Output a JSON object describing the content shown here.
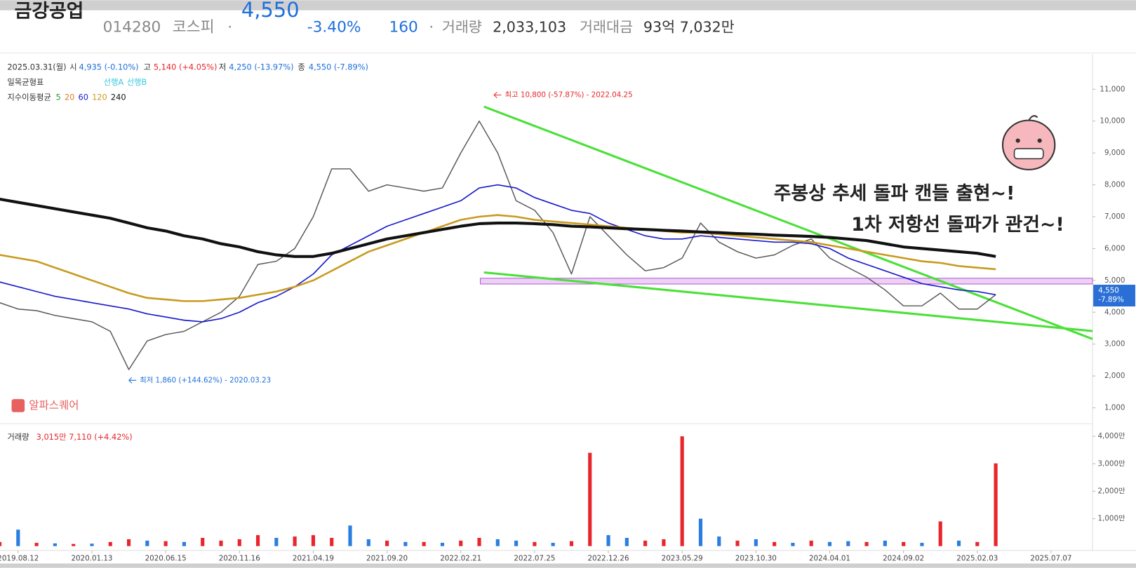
{
  "header": {
    "name": "금강공업",
    "code": "014280",
    "market": "코스피",
    "separator": "·",
    "price": "4,550",
    "change_rate": "-3.40%",
    "change": "160",
    "volume_label": "거래량",
    "volume": "2,033,103",
    "amount_label": "거래대금",
    "amount": "93억 7,032만"
  },
  "ohlc": {
    "date": "2025.03.31(월)",
    "open_label": "시",
    "open": "4,935 (-0.10%)",
    "high_label": "고",
    "high": "5,140 (+4.05%)",
    "low_label": "저",
    "low": "4,250 (-13.97%)",
    "close_label": "종",
    "close": "4,550 (-7.89%)"
  },
  "indicators": {
    "ichimoku": "일목균형표",
    "ichimoku_lines": [
      {
        "label": "선행A",
        "color": "#3cc8e0"
      },
      {
        "label": "선행B",
        "color": "#3cc8e0"
      }
    ],
    "ema": "지수이동평균",
    "ema_periods": [
      {
        "label": "5",
        "color": "#2ca02c"
      },
      {
        "label": "20",
        "color": "#e07b20"
      },
      {
        "label": "60",
        "color": "#1a1acc"
      },
      {
        "label": "120",
        "color": "#c89a1e"
      },
      {
        "label": "240",
        "color": "#111111"
      }
    ]
  },
  "annotations": {
    "high": "최고 10,800 (-57.87%) - 2022.04.25",
    "low": "최저 1,860 (+144.62%) - 2020.03.23",
    "comment1": "주봉상 추세 돌파 캔들 출현~!",
    "comment2": "1차 저항선 돌파가 관건~!",
    "brand": "알파스퀘어"
  },
  "price_tag": {
    "price": "4,550",
    "change": "-7.89%"
  },
  "volume_info": {
    "label": "거래량",
    "value": "3,015만 7,110 (+4.42%)"
  },
  "chart_data": [
    {
      "type": "line",
      "categories": [
        null,
        "2019.08.12",
        null,
        null,
        null,
        "2020.01.13",
        null,
        null,
        null,
        "2020.06.15",
        null,
        null,
        null,
        "2020.11.16",
        null,
        null,
        null,
        "2021.04.19",
        null,
        null,
        null,
        "2021.09.20",
        null,
        null,
        null,
        "2022.02.21",
        null,
        null,
        null,
        "2022.07.25",
        null,
        null,
        null,
        "2022.12.26",
        null,
        null,
        null,
        "2023.05.29",
        null,
        null,
        null,
        "2023.10.30",
        null,
        null,
        null,
        "2024.04.01",
        null,
        null,
        null,
        "2024.09.02",
        null,
        null,
        null,
        "2025.02.03",
        null,
        null,
        null,
        "2025.07.07",
        null,
        null
      ],
      "series": [
        {
          "color": "#555555",
          "values": [
            4300,
            4100,
            4050,
            3900,
            3800,
            3700,
            3400,
            2200,
            3100,
            3300,
            3400,
            3700,
            4000,
            4500,
            5500,
            5600,
            6000,
            7000,
            8500,
            8500,
            7800,
            8000,
            7900,
            7800,
            7900,
            9000,
            10000,
            9000,
            7500,
            7200,
            6500,
            5200,
            7000,
            6400,
            5800,
            5300,
            5400,
            5700,
            6800,
            6200,
            5900,
            5700,
            5800,
            6100,
            6300,
            5700,
            5400,
            5100,
            4700,
            4200,
            4200,
            4600,
            4100,
            4100,
            4550,
            null,
            null,
            null,
            null,
            null
          ]
        },
        {
          "color": "#1a1acc",
          "values": [
            4950,
            4800,
            4650,
            4500,
            4400,
            4300,
            4200,
            4100,
            3950,
            3850,
            3750,
            3700,
            3800,
            4000,
            4300,
            4500,
            4800,
            5200,
            5800,
            6100,
            6400,
            6700,
            6900,
            7100,
            7300,
            7500,
            7900,
            8000,
            7900,
            7600,
            7400,
            7200,
            7100,
            6800,
            6600,
            6400,
            6300,
            6300,
            6400,
            6350,
            6300,
            6250,
            6200,
            6200,
            6150,
            6000,
            5700,
            5500,
            5300,
            5100,
            4900,
            4800,
            4700,
            4650,
            4550,
            null,
            null,
            null,
            null,
            null
          ]
        },
        {
          "color": "#c89a1e",
          "values": [
            5800,
            5700,
            5600,
            5400,
            5200,
            5000,
            4800,
            4600,
            4450,
            4400,
            4350,
            4350,
            4400,
            4450,
            4550,
            4650,
            4800,
            5000,
            5300,
            5600,
            5900,
            6100,
            6300,
            6500,
            6700,
            6900,
            7000,
            7050,
            7000,
            6900,
            6850,
            6800,
            6750,
            6700,
            6650,
            6600,
            6550,
            6500,
            6500,
            6450,
            6400,
            6350,
            6300,
            6250,
            6200,
            6100,
            6000,
            5900,
            5800,
            5700,
            5600,
            5550,
            5450,
            5400,
            5350,
            null,
            null,
            null,
            null,
            null
          ]
        },
        {
          "color": "#111111",
          "values": [
            7550,
            7450,
            7350,
            7250,
            7150,
            7050,
            6950,
            6800,
            6650,
            6550,
            6400,
            6300,
            6150,
            6050,
            5900,
            5800,
            5750,
            5750,
            5850,
            6000,
            6150,
            6300,
            6400,
            6500,
            6600,
            6700,
            6780,
            6800,
            6800,
            6780,
            6750,
            6700,
            6680,
            6650,
            6620,
            6600,
            6570,
            6550,
            6520,
            6500,
            6470,
            6450,
            6420,
            6400,
            6380,
            6350,
            6300,
            6250,
            6150,
            6050,
            6000,
            5950,
            5900,
            5850,
            5750,
            null,
            null,
            null,
            null,
            null
          ]
        }
      ],
      "ylim": [
        500,
        12100
      ],
      "yticks": [
        {
          "value": 1000,
          "label": "1,000"
        },
        {
          "value": 2000,
          "label": "2,000"
        },
        {
          "value": 3000,
          "label": "3,000"
        },
        {
          "value": 4000,
          "label": "4,000"
        },
        {
          "value": 5000,
          "label": "5,000"
        },
        {
          "value": 6000,
          "label": "6,000"
        },
        {
          "value": 7000,
          "label": "7,000"
        },
        {
          "value": 8000,
          "label": "8,000"
        },
        {
          "value": 9000,
          "label": "9,000"
        },
        {
          "value": 10000,
          "label": "10,000"
        },
        {
          "value": 11000,
          "label": "11,000"
        }
      ],
      "grid": false
    },
    {
      "type": "bar",
      "values": [
        150,
        600,
        120,
        100,
        80,
        90,
        150,
        250,
        200,
        180,
        150,
        300,
        200,
        250,
        400,
        300,
        350,
        400,
        300,
        750,
        250,
        200,
        150,
        150,
        120,
        200,
        300,
        250,
        200,
        150,
        120,
        180,
        3400,
        400,
        300,
        200,
        250,
        4000,
        1000,
        350,
        200,
        250,
        150,
        120,
        200,
        150,
        180,
        150,
        200,
        150,
        120,
        900,
        200,
        150,
        3015,
        null,
        null,
        null,
        null,
        null
      ],
      "colors": [
        "#e8262b",
        "#2a7de1",
        "#e8262b",
        "#2a7de1",
        "#e8262b",
        "#2a7de1",
        "#e8262b",
        "#e8262b",
        "#2a7de1",
        "#e8262b",
        "#2a7de1",
        "#e8262b",
        "#e8262b",
        "#e8262b",
        "#e8262b",
        "#2a7de1",
        "#e8262b",
        "#e8262b",
        "#e8262b",
        "#2a7de1",
        "#2a7de1",
        "#e8262b",
        "#2a7de1",
        "#e8262b",
        "#2a7de1",
        "#e8262b",
        "#e8262b",
        "#2a7de1",
        "#2a7de1",
        "#e8262b",
        "#2a7de1",
        "#e8262b",
        "#e8262b",
        "#2a7de1",
        "#2a7de1",
        "#e8262b",
        "#e8262b",
        "#e8262b",
        "#2a7de1",
        "#2a7de1",
        "#e8262b",
        "#2a7de1",
        "#e8262b",
        "#2a7de1",
        "#e8262b",
        "#2a7de1",
        "#2a7de1",
        "#e8262b",
        "#2a7de1",
        "#e8262b",
        "#2a7de1",
        "#e8262b",
        "#2a7de1",
        "#e8262b",
        "#e8262b",
        null,
        null,
        null,
        null,
        null
      ],
      "ylim": [
        0,
        4300
      ],
      "yticks": [
        {
          "value": 1000,
          "label": "1,000만"
        },
        {
          "value": 2000,
          "label": "2,000만"
        },
        {
          "value": 3000,
          "label": "3,000만"
        },
        {
          "value": 4000,
          "label": "4,000만"
        }
      ],
      "grid": false
    }
  ]
}
